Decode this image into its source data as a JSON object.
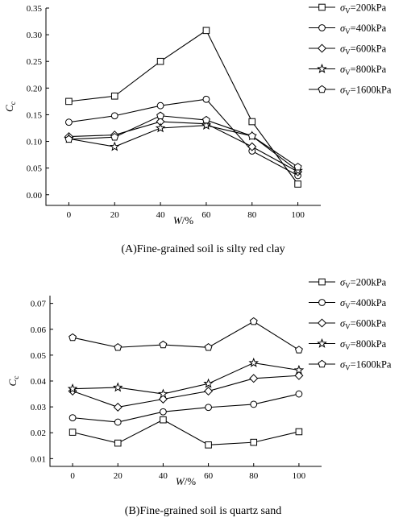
{
  "chart_data": [
    {
      "type": "line",
      "caption": "(A)Fine-grained soil is silty red clay",
      "xlabel": "W/%",
      "ylabel": "Cc",
      "xlim": [
        -10,
        110
      ],
      "ylim": [
        -0.02,
        0.35
      ],
      "x_ticks": [
        0,
        20,
        40,
        60,
        80,
        100
      ],
      "y_ticks": [
        0.0,
        0.05,
        0.1,
        0.15,
        0.2,
        0.25,
        0.3,
        0.35
      ],
      "x_tick_labels": [
        "0",
        "20",
        "40",
        "60",
        "80",
        "100"
      ],
      "y_tick_labels": [
        "0.00",
        "0.05",
        "0.10",
        "0.15",
        "0.20",
        "0.25",
        "0.30",
        "0.35"
      ],
      "legend_position": "top-right",
      "x": [
        0,
        20,
        40,
        60,
        80,
        100
      ],
      "series": [
        {
          "name": "σV=200kPa",
          "marker": "square",
          "values": [
            0.175,
            0.185,
            0.25,
            0.308,
            0.137,
            0.02
          ]
        },
        {
          "name": "σV=400kPa",
          "marker": "circle",
          "values": [
            0.136,
            0.148,
            0.167,
            0.179,
            0.082,
            0.036
          ]
        },
        {
          "name": "σV=600kPa",
          "marker": "diamond",
          "values": [
            0.109,
            0.112,
            0.137,
            0.133,
            0.09,
            0.043
          ]
        },
        {
          "name": "σV=800kPa",
          "marker": "star",
          "values": [
            0.105,
            0.09,
            0.125,
            0.13,
            0.11,
            0.045
          ]
        },
        {
          "name": "σV=1600kPa",
          "marker": "pentagon",
          "values": [
            0.104,
            0.108,
            0.148,
            0.14,
            0.11,
            0.052
          ]
        }
      ]
    },
    {
      "type": "line",
      "caption": "(B)Fine-grained soil is quartz sand",
      "xlabel": "W/%",
      "ylabel": "Cc",
      "xlim": [
        -10,
        110
      ],
      "ylim": [
        0.007,
        0.073
      ],
      "x_ticks": [
        0,
        20,
        40,
        60,
        80,
        100
      ],
      "y_ticks": [
        0.01,
        0.02,
        0.03,
        0.04,
        0.05,
        0.06,
        0.07
      ],
      "x_tick_labels": [
        "0",
        "20",
        "40",
        "60",
        "80",
        "100"
      ],
      "y_tick_labels": [
        "0.01",
        "0.02",
        "0.03",
        "0.04",
        "0.05",
        "0.06",
        "0.07"
      ],
      "legend_position": "top-right",
      "x": [
        0,
        20,
        40,
        60,
        80,
        100
      ],
      "series": [
        {
          "name": "σV=200kPa",
          "marker": "square",
          "values": [
            0.0202,
            0.016,
            0.025,
            0.0153,
            0.0163,
            0.0204
          ]
        },
        {
          "name": "σV=400kPa",
          "marker": "circle",
          "values": [
            0.0258,
            0.0241,
            0.0281,
            0.0298,
            0.031,
            0.035
          ]
        },
        {
          "name": "σV=600kPa",
          "marker": "diamond",
          "values": [
            0.0361,
            0.0299,
            0.033,
            0.0361,
            0.041,
            0.0421
          ]
        },
        {
          "name": "σV=800kPa",
          "marker": "star",
          "values": [
            0.037,
            0.0375,
            0.035,
            0.039,
            0.047,
            0.0442
          ]
        },
        {
          "name": "σV=1600kPa",
          "marker": "pentagon",
          "values": [
            0.0568,
            0.053,
            0.054,
            0.053,
            0.063,
            0.052
          ]
        }
      ]
    }
  ]
}
